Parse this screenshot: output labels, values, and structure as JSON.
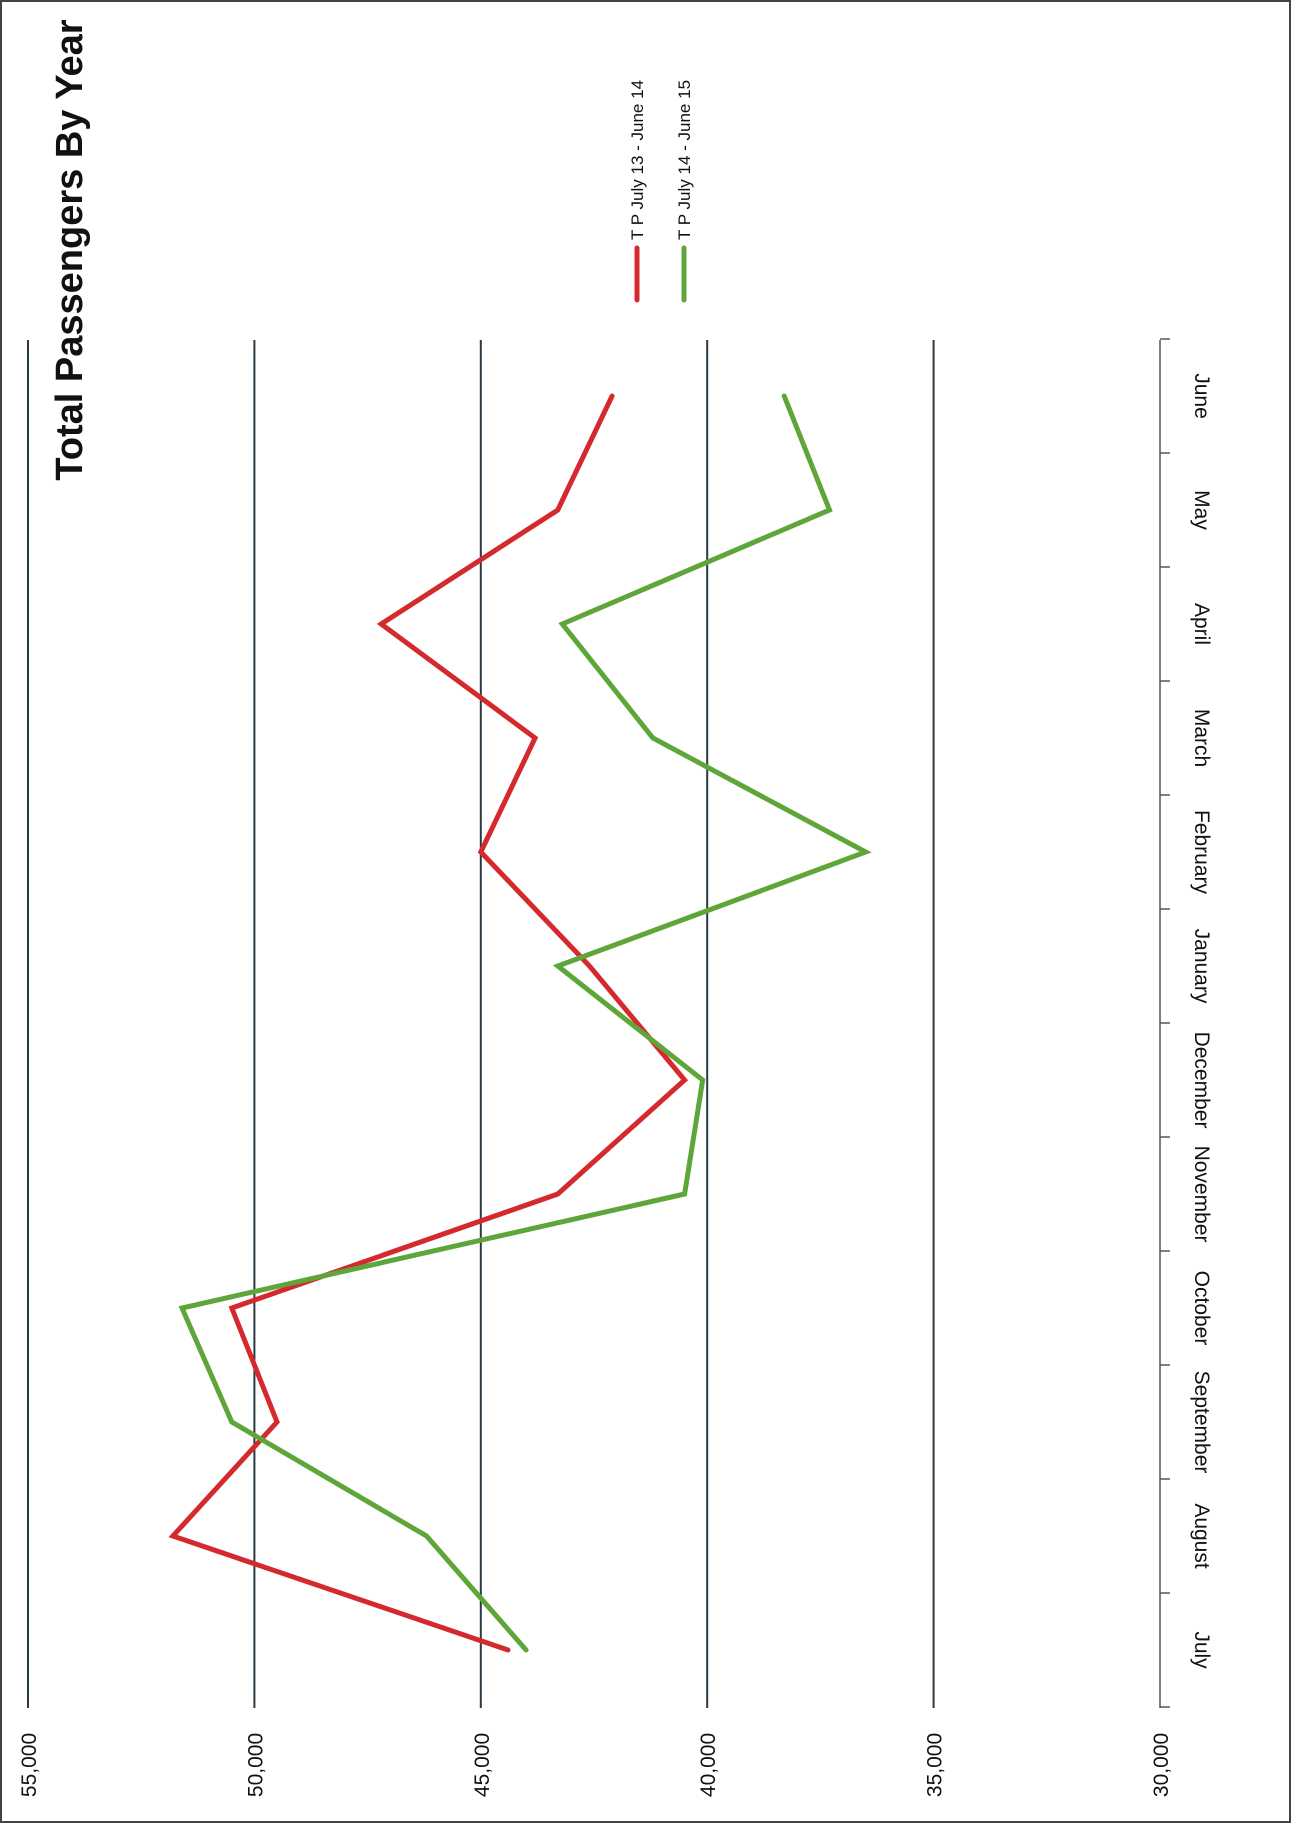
{
  "chart_data": {
    "type": "line",
    "title": "Total Passengers By Year",
    "xlabel": "",
    "ylabel": "",
    "categories": [
      "July",
      "August",
      "September",
      "October",
      "November",
      "December",
      "January",
      "February",
      "March",
      "April",
      "May",
      "June"
    ],
    "ylim": [
      30000,
      55000
    ],
    "yticks": [
      "30,000",
      "35,000",
      "40,000",
      "45,000",
      "50,000",
      "55,000"
    ],
    "grid": true,
    "legend_position": "top-right",
    "orientation": "rotated 90° (page landscape chart printed in portrait)",
    "series": [
      {
        "name": "T P July 13 - June 14",
        "color": "#d42a2e",
        "values": [
          44400,
          51800,
          49500,
          50500,
          43300,
          40500,
          42600,
          45000,
          43800,
          47200,
          43300,
          42100
        ]
      },
      {
        "name": "T P July 14 - June 15",
        "color": "#5fa63a",
        "values": [
          44000,
          46200,
          50500,
          51600,
          40500,
          40100,
          43300,
          36500,
          41200,
          43200,
          37300,
          38300
        ]
      }
    ]
  }
}
